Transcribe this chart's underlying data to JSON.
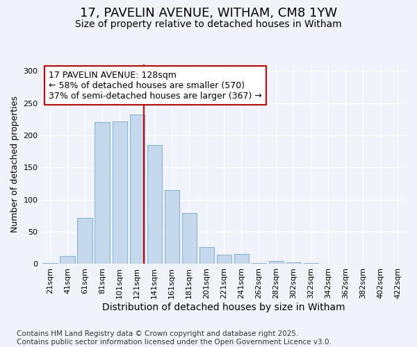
{
  "title": "17, PAVELIN AVENUE, WITHAM, CM8 1YW",
  "subtitle": "Size of property relative to detached houses in Witham",
  "xlabel": "Distribution of detached houses by size in Witham",
  "ylabel": "Number of detached properties",
  "categories": [
    "21sqm",
    "41sqm",
    "61sqm",
    "81sqm",
    "101sqm",
    "121sqm",
    "141sqm",
    "161sqm",
    "181sqm",
    "201sqm",
    "221sqm",
    "241sqm",
    "262sqm",
    "282sqm",
    "302sqm",
    "322sqm",
    "342sqm",
    "362sqm",
    "382sqm",
    "402sqm",
    "422sqm"
  ],
  "values": [
    2,
    12,
    72,
    220,
    222,
    232,
    185,
    115,
    79,
    26,
    15,
    16,
    2,
    5,
    3,
    2,
    0,
    0,
    0,
    0,
    1
  ],
  "bar_color": "#c5d8ec",
  "bar_edge_color": "#8ab4d4",
  "vline_color": "#cc0000",
  "vline_x_index": 5.4,
  "annotation_text": "17 PAVELIN AVENUE: 128sqm\n← 58% of detached houses are smaller (570)\n37% of semi-detached houses are larger (367) →",
  "annotation_box_facecolor": "#ffffff",
  "annotation_box_edgecolor": "#cc0000",
  "background_color": "#f0f4fa",
  "plot_bg_color": "#f0f4fa",
  "ylim": [
    0,
    310
  ],
  "yticks": [
    0,
    50,
    100,
    150,
    200,
    250,
    300
  ],
  "footer": "Contains HM Land Registry data © Crown copyright and database right 2025.\nContains public sector information licensed under the Open Government Licence v3.0.",
  "title_fontsize": 13,
  "subtitle_fontsize": 10,
  "xlabel_fontsize": 10,
  "ylabel_fontsize": 9,
  "tick_fontsize": 8,
  "annotation_fontsize": 9,
  "footer_fontsize": 7.5
}
